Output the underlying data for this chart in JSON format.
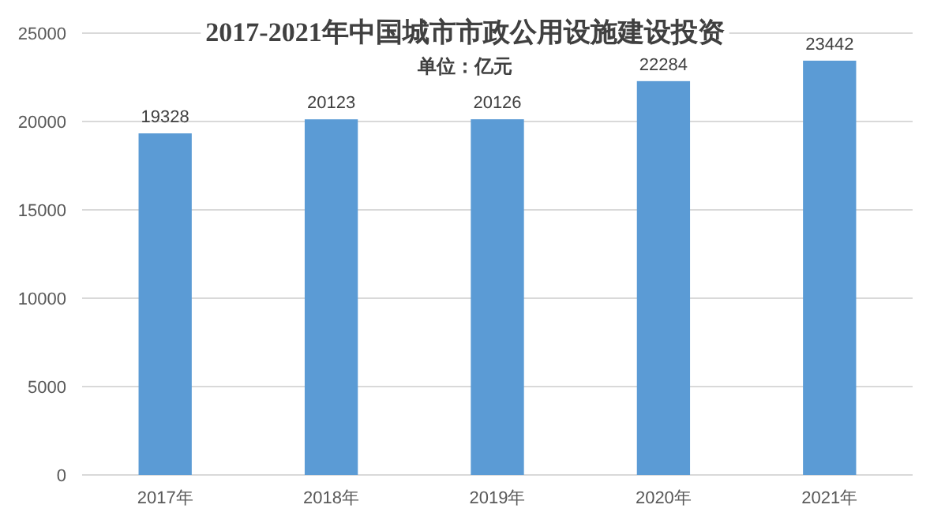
{
  "chart_data": {
    "type": "bar",
    "title": "2017-2021年中国城市市政公用设施建设投资",
    "subtitle": "单位：亿元",
    "categories": [
      "2017年",
      "2018年",
      "2019年",
      "2020年",
      "2021年"
    ],
    "values": [
      19328,
      20123,
      20126,
      22284,
      23442
    ],
    "color": "#5b9bd5",
    "ylim": [
      0,
      25000
    ],
    "yticks": [
      0,
      5000,
      10000,
      15000,
      20000,
      25000
    ],
    "grid": "y",
    "data_labels": true
  }
}
